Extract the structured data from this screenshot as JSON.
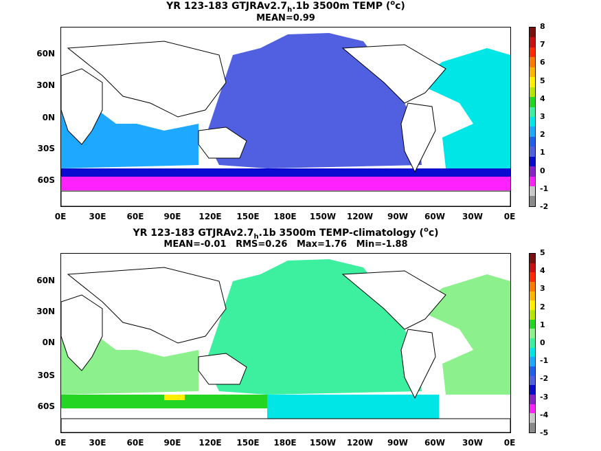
{
  "panels": [
    {
      "title_a": "YR 123-183 GTJRAv2.7",
      "title_sub": "h",
      "title_b": ".1b 3500m TEMP (",
      "title_sup": "o",
      "title_c": "c)",
      "stats": "MEAN=0.99",
      "colorbar": {
        "ticks": [
          "8",
          "7",
          "6",
          "5",
          "4",
          "3",
          "2",
          "1",
          "0",
          "-1",
          "-2"
        ],
        "colors": [
          "#7a1010",
          "#c81010",
          "#ff2a00",
          "#ff7a00",
          "#ffb400",
          "#ffee00",
          "#b4e600",
          "#24d524",
          "#3cf0a0",
          "#00e6e6",
          "#1ea8ff",
          "#2060e8",
          "#5060e0",
          "#0a0ad0",
          "#8a20c8",
          "#ff22ff",
          "#c8c8c8",
          "#8a8a8a"
        ]
      }
    },
    {
      "title_a": "YR 123-183 GTJRAv2.7",
      "title_sub": "h",
      "title_b": ".1b 3500m TEMP-climatology (",
      "title_sup": "o",
      "title_c": "c)",
      "stats": "MEAN=-0.01   RMS=0.26   Max=1.76   Min=-1.88",
      "colorbar": {
        "ticks": [
          "5",
          "4",
          "3",
          "2",
          "1",
          "0",
          "-1",
          "-2",
          "-3",
          "-4",
          "-5"
        ],
        "colors": [
          "#7a1010",
          "#c81010",
          "#ff2a00",
          "#ff7a00",
          "#ffb400",
          "#ffee00",
          "#b4e600",
          "#24d524",
          "#8cf08c",
          "#3cf0a0",
          "#00e6e6",
          "#1ea8ff",
          "#2060e8",
          "#5060e0",
          "#0a0ad0",
          "#8a20c8",
          "#ff22ff",
          "#c8c8c8",
          "#8a8a8a"
        ]
      }
    }
  ],
  "y_ticks": [
    "60N",
    "30N",
    "0N",
    "30S",
    "60S"
  ],
  "x_ticks": [
    "0E",
    "30E",
    "60E",
    "90E",
    "120E",
    "150E",
    "180E",
    "150W",
    "120W",
    "90W",
    "60W",
    "30W",
    "0E"
  ],
  "colors": {
    "land": "#ffffff",
    "top_pacific": "#5060e0",
    "top_indian": "#1ea8ff",
    "top_atlantic": "#00e6e6",
    "top_southern": "#ff22ff",
    "top_acc": "#0a0ad0",
    "bot_pacific": "#3cf0a0",
    "bot_indian": "#8cf08c",
    "bot_southern": "#00e6e6"
  }
}
